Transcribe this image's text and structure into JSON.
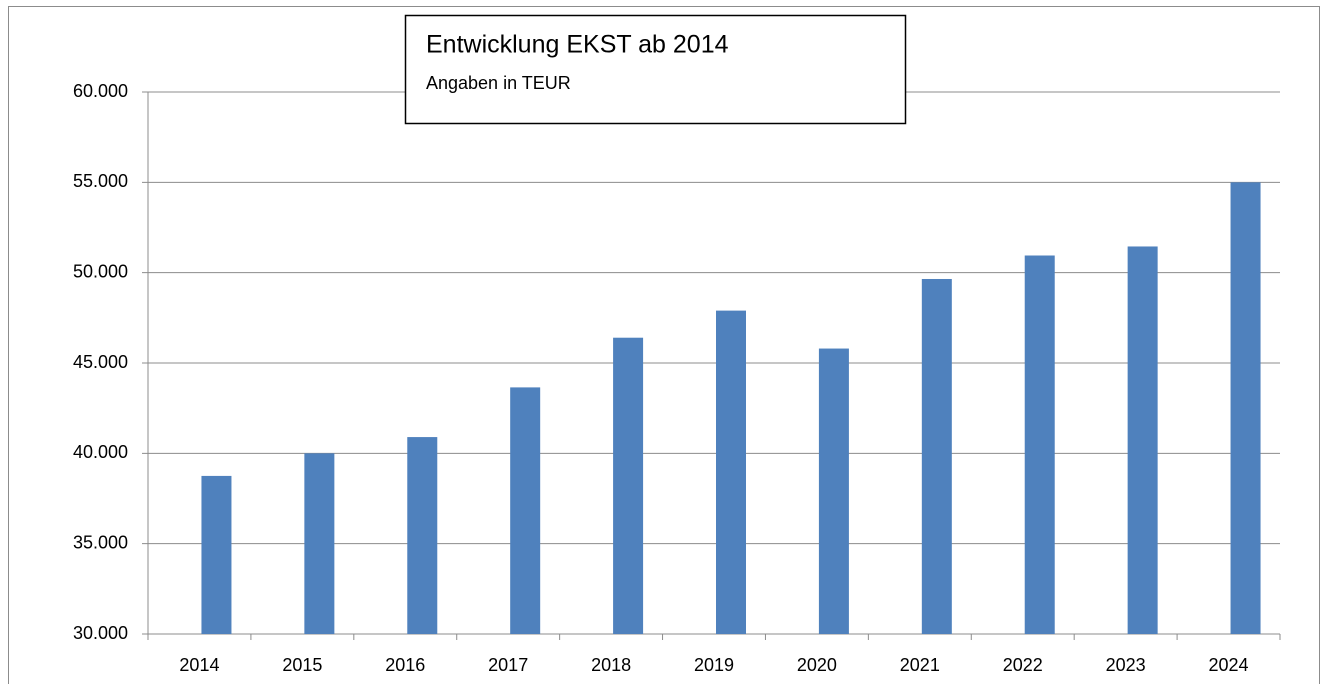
{
  "chart_data": {
    "type": "bar",
    "title": "Entwicklung EKST ab 2014",
    "subtitle": "Angaben in TEUR",
    "categories": [
      "2014",
      "2015",
      "2016",
      "2017",
      "2018",
      "2019",
      "2020",
      "2021",
      "2022",
      "2023",
      "2024"
    ],
    "values": [
      38750,
      40000,
      40900,
      43650,
      46400,
      47900,
      45800,
      49650,
      50950,
      51450,
      55000
    ],
    "color": "#4f81bd",
    "ylim": [
      30000,
      60000
    ],
    "yticks": [
      {
        "value": 30000,
        "label": "30.000"
      },
      {
        "value": 35000,
        "label": "35.000"
      },
      {
        "value": 40000,
        "label": "40.000"
      },
      {
        "value": 45000,
        "label": "45.000"
      },
      {
        "value": 50000,
        "label": "50.000"
      },
      {
        "value": 55000,
        "label": "55.000"
      },
      {
        "value": 60000,
        "label": "60.000"
      }
    ],
    "grid": true
  }
}
